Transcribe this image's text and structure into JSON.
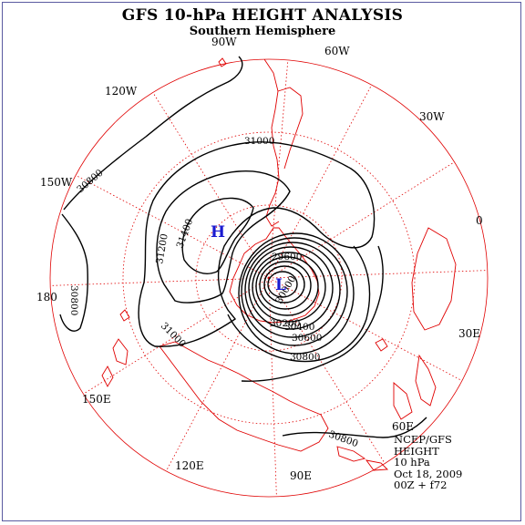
{
  "title": "GFS 10-hPa HEIGHT ANALYSIS",
  "subtitle": "Southern Hemisphere",
  "longitude_labels": [
    "90W",
    "60W",
    "30W",
    "0",
    "30E",
    "60E",
    "90E",
    "120E",
    "150E",
    "180",
    "150W",
    "120W"
  ],
  "contour_labels": [
    "31000",
    "30800",
    "31400",
    "31200",
    "30800",
    "31000",
    "29600",
    "30000",
    "30200",
    "30400",
    "30600",
    "30800",
    "30800"
  ],
  "centers": {
    "high": "H",
    "low": "L"
  },
  "info": {
    "source": "NCEP/GFS",
    "field": "HEIGHT",
    "level": "10 hPa",
    "date": "Oct 18, 2009",
    "run": "00Z + f72"
  },
  "colors": {
    "contours": "#000000",
    "coastlines": "#e00000",
    "grid": "#e00000",
    "center_markers": "#1a1ad0",
    "frame": "#5a5aa0"
  }
}
